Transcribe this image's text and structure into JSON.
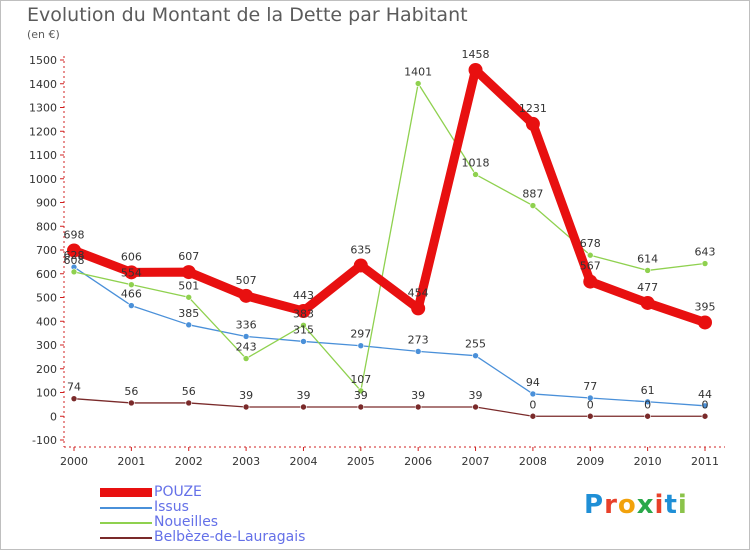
{
  "header": {
    "title": "Evolution du Montant de la Dette par Habitant",
    "subtitle": "(en €)"
  },
  "logo_text": "Proxiti",
  "logo_colors": [
    "#1f8fd6",
    "#e8402a",
    "#f2a20c",
    "#2aa84a",
    "#e8402a",
    "#1f8fd6",
    "#8bc34a"
  ],
  "chart_data": {
    "type": "line",
    "title": "Evolution du Montant de la Dette par Habitant",
    "subtitle": "(en €)",
    "xlabel": "",
    "ylabel": "",
    "x": [
      "2000",
      "2001",
      "2002",
      "2003",
      "2004",
      "2005",
      "2006",
      "2007",
      "2008",
      "2009",
      "2010",
      "2011"
    ],
    "ylim": [
      -100,
      1500
    ],
    "yticks": [
      "-100",
      "0",
      "100",
      "200",
      "300",
      "400",
      "500",
      "600",
      "700",
      "800",
      "900",
      "1000",
      "1100",
      "1200",
      "1300",
      "1400",
      "1500"
    ],
    "grid": false,
    "legend_position": "bottom-left",
    "series": [
      {
        "name": "POUZE",
        "color": "#e81010",
        "emphasis": "thick",
        "values": [
          698,
          606,
          607,
          507,
          443,
          635,
          454,
          1458,
          1231,
          567,
          477,
          395
        ],
        "labels": [
          "698",
          "606",
          "607",
          "507",
          "443",
          "635",
          "454",
          "1458",
          "1231",
          "567",
          "477",
          "395"
        ]
      },
      {
        "name": "Issus",
        "color": "#4a90d9",
        "emphasis": "thin",
        "values": [
          628,
          466,
          385,
          336,
          315,
          297,
          273,
          255,
          94,
          77,
          61,
          44
        ],
        "labels": [
          "628",
          "466",
          "385",
          "336",
          "315",
          "297",
          "273",
          "255",
          "94",
          "77",
          "61",
          "44"
        ]
      },
      {
        "name": "Noueilles",
        "color": "#8fd14f",
        "emphasis": "thin",
        "values": [
          608,
          554,
          501,
          243,
          383,
          107,
          1401,
          1018,
          887,
          678,
          614,
          643
        ],
        "labels": [
          "608",
          "554",
          "501",
          "243",
          "383",
          "107",
          "1401",
          "1018",
          "887",
          "678",
          "614",
          "643"
        ]
      },
      {
        "name": "Belbèze-de-Lauragais",
        "color": "#7a2a2a",
        "emphasis": "thin",
        "values": [
          74,
          56,
          56,
          39,
          39,
          39,
          39,
          39,
          0,
          0,
          0,
          0
        ],
        "labels": [
          "74",
          "56",
          "56",
          "39",
          "39",
          "39",
          "39",
          "39",
          "0",
          "0",
          "0",
          "0"
        ]
      }
    ]
  }
}
